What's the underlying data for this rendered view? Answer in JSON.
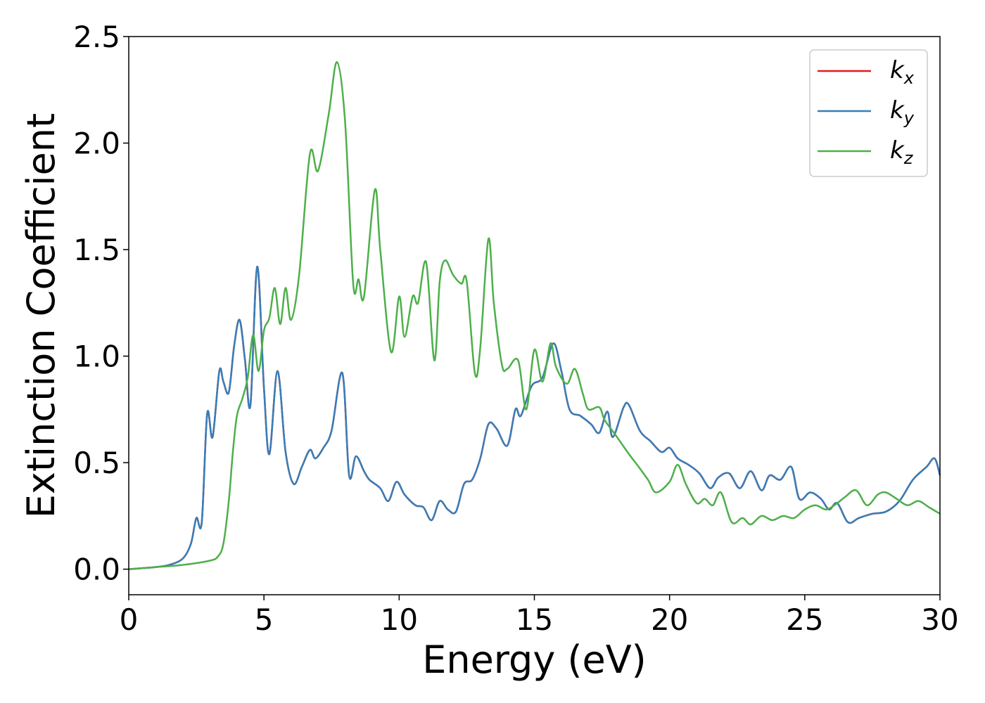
{
  "chart_data": {
    "type": "line",
    "xlabel": "Energy (eV)",
    "ylabel": "Extinction Coefficient",
    "xlim": [
      0,
      30
    ],
    "ylim": [
      -0.12,
      2.5
    ],
    "xticks": [
      "0",
      "5",
      "10",
      "15",
      "20",
      "25",
      "30"
    ],
    "yticks": [
      "0.0",
      "0.5",
      "1.0",
      "1.5",
      "2.0",
      "2.5"
    ],
    "grid": false,
    "legend_position": "top-right",
    "series": [
      {
        "name": "k",
        "subscript": "x",
        "color": "#e41a1c",
        "x": [
          0,
          1,
          1.5,
          2,
          2.3,
          2.5,
          2.7,
          2.9,
          3.1,
          3.35,
          3.5,
          3.7,
          3.9,
          4.1,
          4.3,
          4.5,
          4.75,
          5.0,
          5.2,
          5.5,
          5.8,
          6.1,
          6.4,
          6.7,
          6.9,
          7.2,
          7.5,
          7.9,
          8.15,
          8.4,
          8.7,
          8.9,
          9.3,
          9.6,
          9.9,
          10.2,
          10.6,
          10.9,
          11.2,
          11.5,
          11.8,
          12.1,
          12.4,
          12.7,
          13.0,
          13.3,
          13.6,
          14.0,
          14.3,
          14.5,
          14.9,
          15.3,
          15.7,
          16.0,
          16.3,
          16.7,
          17.1,
          17.4,
          17.7,
          17.9,
          18.3,
          18.5,
          18.9,
          19.3,
          19.7,
          20.0,
          20.3,
          20.7,
          21.1,
          21.5,
          21.8,
          22.2,
          22.6,
          23.0,
          23.4,
          23.7,
          24.1,
          24.5,
          24.8,
          25.2,
          25.6,
          25.9,
          26.2,
          26.6,
          27.0,
          27.5,
          28.0,
          28.5,
          29.0,
          29.5,
          29.8,
          30.0
        ],
        "y": [
          0,
          0.01,
          0.02,
          0.05,
          0.12,
          0.24,
          0.22,
          0.73,
          0.62,
          0.93,
          0.88,
          0.83,
          1.05,
          1.17,
          0.98,
          0.77,
          1.42,
          0.85,
          0.54,
          0.93,
          0.55,
          0.4,
          0.48,
          0.56,
          0.52,
          0.57,
          0.65,
          0.92,
          0.44,
          0.53,
          0.46,
          0.42,
          0.38,
          0.32,
          0.41,
          0.35,
          0.3,
          0.29,
          0.23,
          0.32,
          0.28,
          0.27,
          0.4,
          0.42,
          0.52,
          0.68,
          0.66,
          0.58,
          0.75,
          0.72,
          0.86,
          0.9,
          1.06,
          0.93,
          0.75,
          0.72,
          0.68,
          0.64,
          0.74,
          0.62,
          0.76,
          0.77,
          0.65,
          0.6,
          0.55,
          0.57,
          0.52,
          0.49,
          0.45,
          0.38,
          0.43,
          0.45,
          0.38,
          0.46,
          0.37,
          0.44,
          0.42,
          0.48,
          0.33,
          0.36,
          0.33,
          0.28,
          0.31,
          0.22,
          0.24,
          0.26,
          0.27,
          0.32,
          0.42,
          0.48,
          0.52,
          0.44
        ]
      },
      {
        "name": "k",
        "subscript": "y",
        "color": "#377eb8",
        "x": [
          0,
          1,
          1.5,
          2,
          2.3,
          2.5,
          2.7,
          2.9,
          3.1,
          3.35,
          3.5,
          3.7,
          3.9,
          4.1,
          4.3,
          4.5,
          4.75,
          5.0,
          5.2,
          5.5,
          5.8,
          6.1,
          6.4,
          6.7,
          6.9,
          7.2,
          7.5,
          7.9,
          8.15,
          8.4,
          8.7,
          8.9,
          9.3,
          9.6,
          9.9,
          10.2,
          10.6,
          10.9,
          11.2,
          11.5,
          11.8,
          12.1,
          12.4,
          12.7,
          13.0,
          13.3,
          13.6,
          14.0,
          14.3,
          14.5,
          14.9,
          15.3,
          15.7,
          16.0,
          16.3,
          16.7,
          17.1,
          17.4,
          17.7,
          17.9,
          18.3,
          18.5,
          18.9,
          19.3,
          19.7,
          20.0,
          20.3,
          20.7,
          21.1,
          21.5,
          21.8,
          22.2,
          22.6,
          23.0,
          23.4,
          23.7,
          24.1,
          24.5,
          24.8,
          25.2,
          25.6,
          25.9,
          26.2,
          26.6,
          27.0,
          27.5,
          28.0,
          28.5,
          29.0,
          29.5,
          29.8,
          30.0
        ],
        "y": [
          0,
          0.01,
          0.02,
          0.05,
          0.12,
          0.24,
          0.22,
          0.73,
          0.62,
          0.93,
          0.88,
          0.83,
          1.05,
          1.17,
          0.98,
          0.77,
          1.42,
          0.85,
          0.54,
          0.93,
          0.55,
          0.4,
          0.48,
          0.56,
          0.52,
          0.57,
          0.65,
          0.92,
          0.44,
          0.53,
          0.46,
          0.42,
          0.38,
          0.32,
          0.41,
          0.35,
          0.3,
          0.29,
          0.23,
          0.32,
          0.28,
          0.27,
          0.4,
          0.42,
          0.52,
          0.68,
          0.66,
          0.58,
          0.75,
          0.72,
          0.86,
          0.9,
          1.06,
          0.93,
          0.75,
          0.72,
          0.68,
          0.64,
          0.74,
          0.62,
          0.76,
          0.77,
          0.65,
          0.6,
          0.55,
          0.57,
          0.52,
          0.49,
          0.45,
          0.38,
          0.43,
          0.45,
          0.38,
          0.46,
          0.37,
          0.44,
          0.42,
          0.48,
          0.33,
          0.36,
          0.33,
          0.28,
          0.31,
          0.22,
          0.24,
          0.26,
          0.27,
          0.32,
          0.42,
          0.48,
          0.52,
          0.44
        ]
      },
      {
        "name": "k",
        "subscript": "z",
        "color": "#4daf4a",
        "x": [
          0,
          1,
          2,
          3,
          3.3,
          3.5,
          3.7,
          3.85,
          4.0,
          4.2,
          4.4,
          4.6,
          4.8,
          5.0,
          5.2,
          5.4,
          5.6,
          5.8,
          6.0,
          6.3,
          6.7,
          7.0,
          7.4,
          7.7,
          8.0,
          8.3,
          8.5,
          8.7,
          9.1,
          9.3,
          9.7,
          10.0,
          10.2,
          10.5,
          10.7,
          11.0,
          11.3,
          11.5,
          11.7,
          12.0,
          12.3,
          12.5,
          12.8,
          13.0,
          13.3,
          13.5,
          13.8,
          14.0,
          14.4,
          14.7,
          15.0,
          15.3,
          15.6,
          15.8,
          16.2,
          16.5,
          16.8,
          17.0,
          17.4,
          17.6,
          18.0,
          18.5,
          18.8,
          19.2,
          19.5,
          20.0,
          20.3,
          20.6,
          21.0,
          21.3,
          21.6,
          21.9,
          22.3,
          22.7,
          23.0,
          23.4,
          23.8,
          24.2,
          24.6,
          25.0,
          25.4,
          25.8,
          26.2,
          26.5,
          26.9,
          27.3,
          27.7,
          28.0,
          28.4,
          28.8,
          29.2,
          29.6,
          30.0
        ],
        "y": [
          0,
          0.01,
          0.02,
          0.04,
          0.06,
          0.12,
          0.32,
          0.55,
          0.72,
          0.8,
          0.9,
          1.1,
          0.93,
          1.12,
          1.18,
          1.32,
          1.15,
          1.32,
          1.17,
          1.38,
          1.95,
          1.87,
          2.14,
          2.38,
          2.1,
          1.34,
          1.36,
          1.28,
          1.78,
          1.5,
          1.02,
          1.28,
          1.09,
          1.28,
          1.25,
          1.44,
          0.98,
          1.35,
          1.45,
          1.38,
          1.34,
          1.35,
          0.92,
          1.04,
          1.55,
          1.25,
          0.96,
          0.94,
          0.98,
          0.75,
          1.03,
          0.88,
          1.06,
          0.95,
          0.87,
          0.94,
          0.82,
          0.75,
          0.76,
          0.7,
          0.63,
          0.54,
          0.49,
          0.42,
          0.36,
          0.41,
          0.49,
          0.4,
          0.31,
          0.33,
          0.3,
          0.36,
          0.22,
          0.24,
          0.21,
          0.25,
          0.23,
          0.25,
          0.24,
          0.28,
          0.3,
          0.28,
          0.31,
          0.34,
          0.37,
          0.3,
          0.35,
          0.36,
          0.33,
          0.3,
          0.32,
          0.29,
          0.26
        ]
      }
    ]
  }
}
